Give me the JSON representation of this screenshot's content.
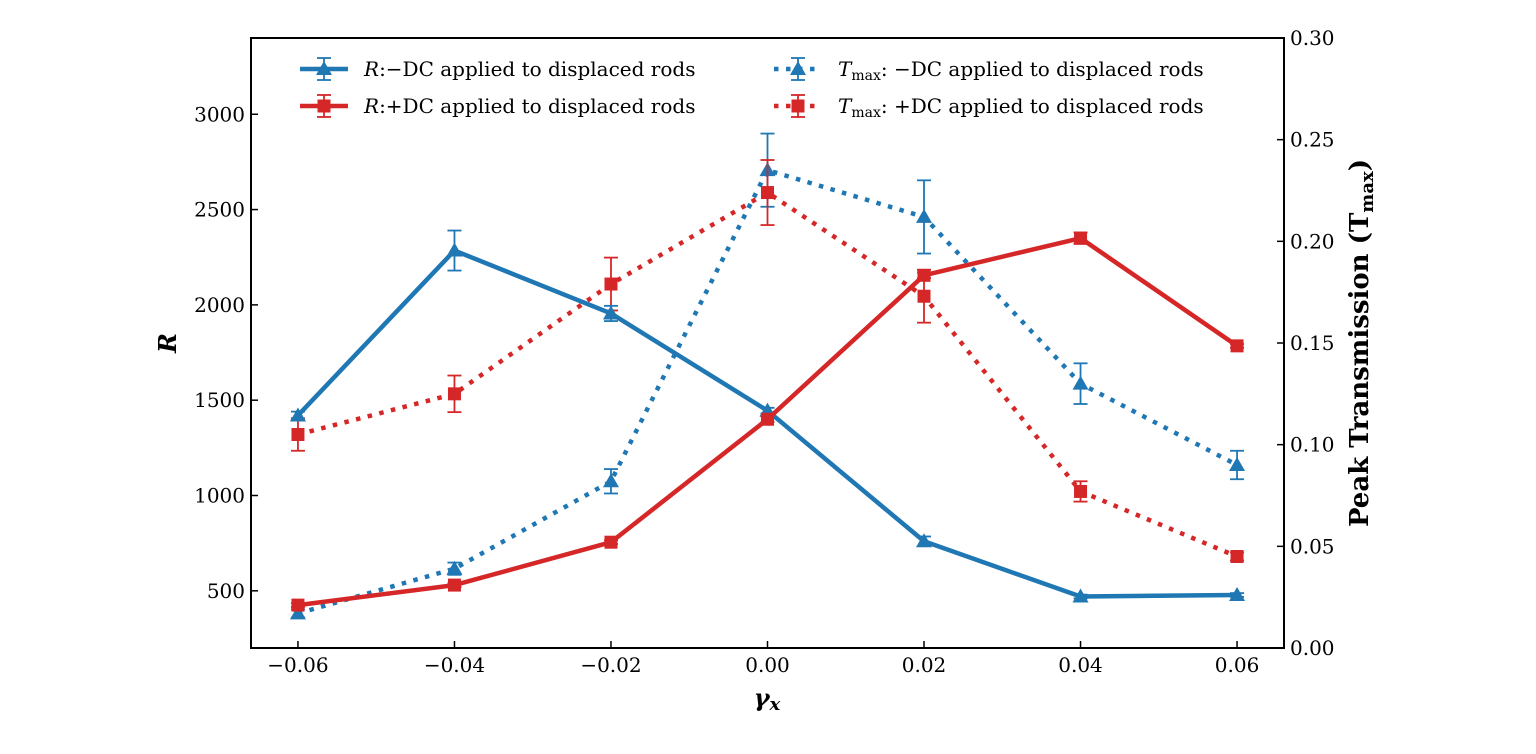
{
  "chart_data": {
    "type": "line",
    "x": [
      -0.06,
      -0.04,
      -0.02,
      0.0,
      0.02,
      0.04,
      0.06
    ],
    "x_tick_labels": [
      "−0.06",
      "−0.04",
      "−0.02",
      "0.00",
      "0.02",
      "0.04",
      "0.06"
    ],
    "xlabel": "γx",
    "xlabel_main": "γ",
    "xlabel_sub": "x",
    "xlim": [
      -0.066,
      0.066
    ],
    "left_axis": {
      "label": "R",
      "ylim": [
        200,
        3400
      ],
      "ticks": [
        500,
        1000,
        1500,
        2000,
        2500,
        3000
      ],
      "tick_labels": [
        "500",
        "1000",
        "1500",
        "2000",
        "2500",
        "3000"
      ]
    },
    "right_axis": {
      "label": "Peak Transmission (Tmax)",
      "label_main": "Peak Transmission (T",
      "label_sub": "max",
      "label_end": ")",
      "ylim": [
        0.0,
        0.3
      ],
      "ticks": [
        0.0,
        0.05,
        0.1,
        0.15,
        0.2,
        0.25,
        0.3
      ],
      "tick_labels": [
        "0.00",
        "0.05",
        "0.10",
        "0.15",
        "0.20",
        "0.25",
        "0.30"
      ]
    },
    "series": [
      {
        "name": "R:−DC applied to displaced rods",
        "legend_var": "R",
        "legend_rest": ":−DC applied to displaced rods",
        "axis": "left",
        "color": "#1f77b4",
        "marker": "triangle",
        "linestyle": "solid",
        "values": [
          1420,
          2285,
          1955,
          1445,
          760,
          470,
          478
        ],
        "errors": [
          20,
          105,
          40,
          15,
          25,
          10,
          10
        ]
      },
      {
        "name": "R:+DC applied to displaced rods",
        "legend_var": "R",
        "legend_rest": ":+DC applied to displaced rods",
        "axis": "left",
        "color": "#d62728",
        "marker": "square",
        "linestyle": "solid",
        "values": [
          425,
          530,
          755,
          1400,
          2155,
          2350,
          1785
        ],
        "errors": [
          10,
          10,
          10,
          15,
          15,
          30,
          10
        ]
      },
      {
        "name": "Tmax: −DC applied to displaced rods",
        "legend_var": "T",
        "legend_sub": "max",
        "legend_rest": ": −DC applied to displaced rods",
        "axis": "right",
        "color": "#1f77b4",
        "marker": "triangle",
        "linestyle": "dotted",
        "values": [
          0.017,
          0.039,
          0.082,
          0.235,
          0.212,
          0.13,
          0.09
        ],
        "errors": [
          0.002,
          0.003,
          0.006,
          0.018,
          0.018,
          0.01,
          0.007
        ]
      },
      {
        "name": "Tmax: +DC applied to displaced rods",
        "legend_var": "T",
        "legend_sub": "max",
        "legend_rest": ": +DC applied to displaced rods",
        "axis": "right",
        "color": "#d62728",
        "marker": "square",
        "linestyle": "dotted",
        "values": [
          0.105,
          0.125,
          0.179,
          0.224,
          0.173,
          0.077,
          0.045
        ],
        "errors": [
          0.008,
          0.009,
          0.013,
          0.016,
          0.013,
          0.005,
          0.002
        ]
      }
    ],
    "legend": {
      "location": "top",
      "columns": 2
    }
  }
}
